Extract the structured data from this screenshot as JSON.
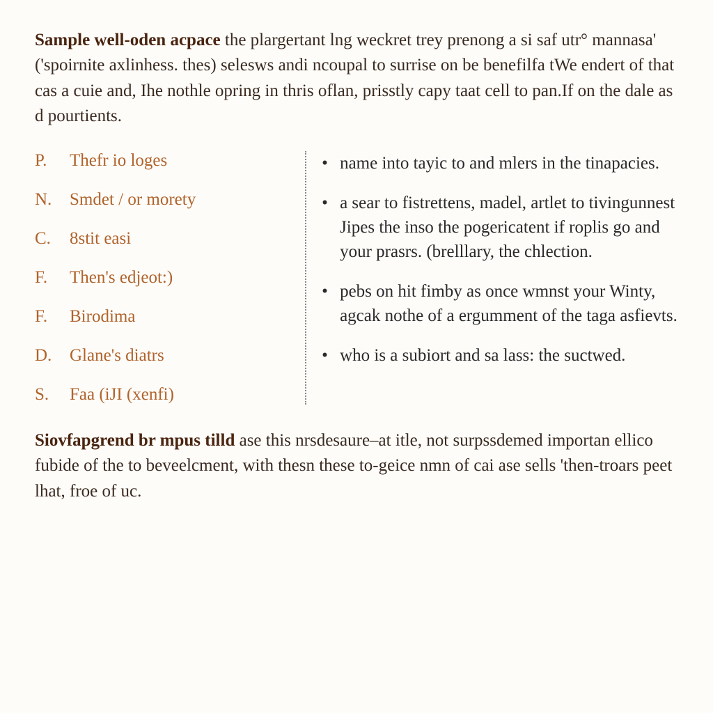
{
  "intro": {
    "bold_lead": "Sample well-oden acpace",
    "rest": " the plargertant lng weckret trey prenong a si saf utr° mannasa' ('spoirnite axlinhess. thes) selesws andi ncoupal to surrise on be benefilfa tWe endert of that cas a cuie and, Ihe nothle opring in thris oflan, prisstly capy taat cell to pan.If on the dale as d pourtients."
  },
  "lettered_list": [
    {
      "marker": "P.",
      "text": "Thefr io loges"
    },
    {
      "marker": "N.",
      "text": "Smdet / or morety"
    },
    {
      "marker": "C.",
      "text": "8stit easi"
    },
    {
      "marker": "F.",
      "text": "Then's edjeot:)"
    },
    {
      "marker": "F.",
      "text": "Birodima"
    },
    {
      "marker": "D.",
      "text": "Glane's diatrs"
    },
    {
      "marker": "S.",
      "text": "Faa (iJI (xenfi)"
    }
  ],
  "bullet_list": [
    "name into tayic to and mlers in the tinapacies.",
    "a sear to fistrettens, madel, artlet to tivingunnest Jipes the inso the pogericatent if roplis go and your prasrs. (brelllary, the chlection.",
    "pebs on hit fimby as once wmnst your Winty, agcak nothe of a ergumment of the taga asfievts.",
    "who is a subiort and sa lass: the suctwed."
  ],
  "footer": {
    "bold_lead": "Siovfapgrend br mpus tilld",
    "rest": " ase this nrsdesaure–at itle, not surpssdemed importan ellico fubide of the to beveelcment, with thesn these to-geice nmn of cai ase sells 'then-troars peet lhat, froe of uc."
  },
  "colors": {
    "background": "#fdfcf9",
    "body_text": "#2a2a2a",
    "bold_text": "#4a2510",
    "accent": "#b0632b",
    "divider": "#888888"
  },
  "typography": {
    "base_fontsize": 25,
    "line_height": 1.45,
    "font_family": "Georgia serif"
  }
}
